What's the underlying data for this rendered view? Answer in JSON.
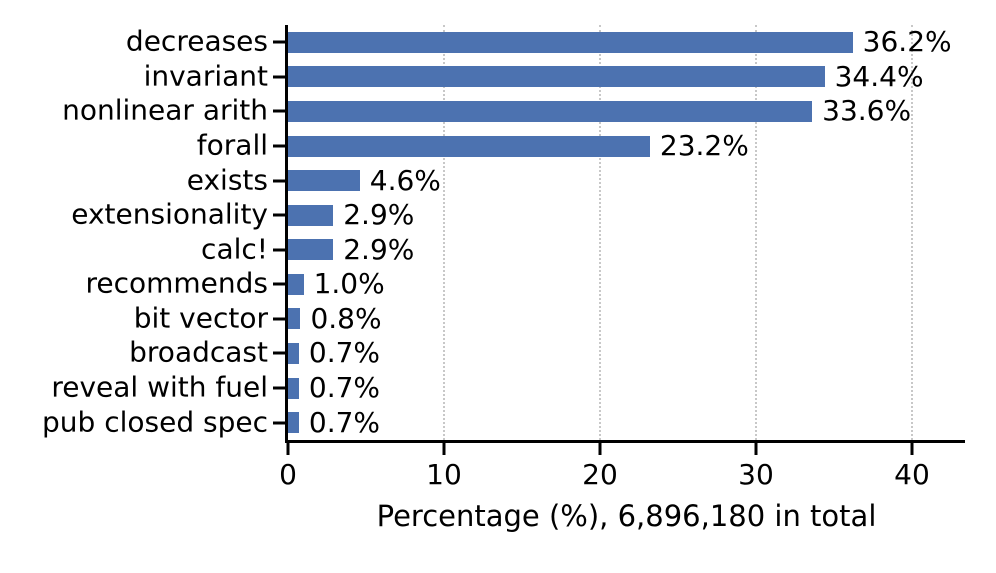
{
  "chart_data": {
    "type": "bar",
    "orientation": "horizontal",
    "title": "",
    "xlabel": "Percentage (%), 6,896,180 in total",
    "ylabel": "",
    "categories": [
      "decreases",
      "invariant",
      "nonlinear arith",
      "forall",
      "exists",
      "extensionality",
      "calc!",
      "recommends",
      "bit vector",
      "broadcast",
      "reveal with fuel",
      "pub closed spec"
    ],
    "values": [
      36.2,
      34.4,
      33.6,
      23.2,
      4.6,
      2.9,
      2.9,
      1.0,
      0.8,
      0.7,
      0.7,
      0.7
    ],
    "value_labels": [
      "36.2%",
      "34.4%",
      "33.6%",
      "23.2%",
      "4.6%",
      "2.9%",
      "2.9%",
      "1.0%",
      "0.8%",
      "0.7%",
      "0.7%",
      "0.7%"
    ],
    "xticks": [
      0,
      10,
      20,
      30,
      40
    ],
    "xtick_labels": [
      "0",
      "10",
      "20",
      "30",
      "40"
    ],
    "xlim": [
      0,
      43.4
    ],
    "grid": "vertical-dotted",
    "legend": "none",
    "bar_color": "#4c72b0",
    "grid_color": "#c8c8c8",
    "axis_color": "#000000"
  }
}
